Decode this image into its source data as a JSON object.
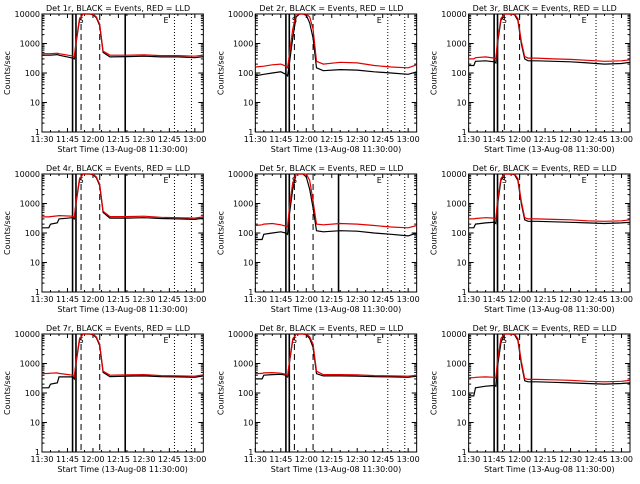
{
  "colors": {
    "events": "#000000",
    "lld": "#e00000",
    "axes": "#000000"
  },
  "common": {
    "title_suffix": "BLACK = Events, RED = LLD",
    "xlabel": "Start Time (13-Aug-08 11:30:00)",
    "ylabel": "Counts/sec",
    "x_ticks": [
      "11:30",
      "11:45",
      "12:00",
      "12:15",
      "12:30",
      "12:45",
      "13:00"
    ],
    "y_ticks": [
      "1",
      "10",
      "100",
      "1000",
      "10000"
    ],
    "markers": [
      "S",
      "E"
    ]
  },
  "chart_data": [
    {
      "type": "line",
      "title": "Det 1r",
      "xlim": [
        0,
        95
      ],
      "ylim": [
        1,
        10000
      ],
      "y_scale": "log",
      "solid_lines": [
        18,
        20,
        49
      ],
      "dashed_lines": [
        23,
        34
      ],
      "dotted_lines": [
        78,
        88
      ],
      "marker_s": 23,
      "marker_e": 73,
      "series": [
        {
          "name": "Events",
          "x": [
            0,
            4,
            5,
            9,
            10,
            18,
            19,
            20,
            22,
            24,
            26,
            28,
            30,
            32,
            34,
            36,
            40,
            50,
            60,
            70,
            80,
            90,
            95
          ],
          "y": [
            400,
            400,
            400,
            420,
            400,
            320,
            300,
            1000,
            6000,
            10000,
            10000,
            10000,
            9500,
            7500,
            4000,
            500,
            350,
            360,
            370,
            350,
            350,
            330,
            360
          ]
        },
        {
          "name": "LLD",
          "x": [
            0,
            4,
            5,
            9,
            10,
            18,
            19,
            20,
            22,
            24,
            26,
            28,
            30,
            32,
            34,
            36,
            40,
            50,
            60,
            70,
            80,
            90,
            95
          ],
          "y": [
            450,
            450,
            450,
            470,
            450,
            380,
            350,
            1100,
            6500,
            10000,
            10000,
            10000,
            10000,
            8000,
            4500,
            550,
            400,
            400,
            410,
            390,
            390,
            370,
            400
          ]
        }
      ]
    },
    {
      "type": "line",
      "title": "Det 2r",
      "xlim": [
        0,
        95
      ],
      "ylim": [
        1,
        10000
      ],
      "y_scale": "log",
      "solid_lines": [
        18,
        20
      ],
      "dashed_lines": [
        23,
        34
      ],
      "dotted_lines": [
        78,
        88
      ],
      "marker_s": 23,
      "marker_e": 73,
      "series": [
        {
          "name": "Events",
          "x": [
            0,
            5,
            10,
            15,
            18,
            19,
            20,
            22,
            24,
            26,
            28,
            30,
            32,
            34,
            36,
            40,
            50,
            60,
            70,
            80,
            90,
            95
          ],
          "y": [
            80,
            90,
            100,
            110,
            90,
            80,
            200,
            1500,
            8000,
            10000,
            10000,
            9000,
            5000,
            1500,
            150,
            120,
            130,
            125,
            110,
            100,
            90,
            110
          ]
        },
        {
          "name": "LLD",
          "x": [
            0,
            5,
            10,
            15,
            18,
            19,
            20,
            22,
            24,
            26,
            28,
            30,
            32,
            34,
            36,
            40,
            50,
            60,
            70,
            80,
            90,
            95
          ],
          "y": [
            160,
            170,
            190,
            200,
            170,
            150,
            400,
            3000,
            10000,
            10000,
            10000,
            10000,
            8000,
            3000,
            250,
            200,
            230,
            220,
            180,
            160,
            150,
            190
          ]
        }
      ]
    },
    {
      "type": "line",
      "title": "Det 3r",
      "xlim": [
        0,
        95
      ],
      "ylim": [
        1,
        10000
      ],
      "y_scale": "log",
      "solid_lines": [
        15,
        17,
        37
      ],
      "dashed_lines": [
        21,
        30
      ],
      "dotted_lines": [
        75,
        85
      ],
      "marker_s": 21,
      "marker_e": 68,
      "series": [
        {
          "name": "Events",
          "x": [
            0,
            3,
            4,
            10,
            15,
            16,
            17,
            19,
            21,
            23,
            25,
            27,
            29,
            31,
            33,
            35,
            40,
            50,
            60,
            70,
            80,
            90,
            95
          ],
          "y": [
            180,
            180,
            250,
            260,
            240,
            220,
            1000,
            6000,
            10000,
            10000,
            10000,
            9500,
            6000,
            1000,
            300,
            260,
            260,
            250,
            240,
            220,
            200,
            210,
            230
          ]
        },
        {
          "name": "LLD",
          "x": [
            0,
            3,
            4,
            10,
            15,
            16,
            17,
            19,
            21,
            23,
            25,
            27,
            29,
            31,
            33,
            35,
            40,
            50,
            60,
            70,
            80,
            90,
            95
          ],
          "y": [
            300,
            300,
            330,
            350,
            320,
            300,
            1200,
            7000,
            10000,
            10000,
            10000,
            10000,
            7000,
            1200,
            360,
            320,
            320,
            300,
            290,
            270,
            250,
            260,
            280
          ]
        }
      ]
    },
    {
      "type": "line",
      "title": "Det 4r",
      "xlim": [
        0,
        95
      ],
      "ylim": [
        1,
        10000
      ],
      "y_scale": "log",
      "solid_lines": [
        18,
        20,
        49
      ],
      "dashed_lines": [
        23,
        34
      ],
      "dotted_lines": [
        78,
        88
      ],
      "marker_s": 23,
      "marker_e": 73,
      "series": [
        {
          "name": "Events",
          "x": [
            0,
            4,
            5,
            9,
            10,
            18,
            19,
            20,
            22,
            24,
            26,
            28,
            30,
            32,
            34,
            36,
            40,
            50,
            60,
            70,
            80,
            90,
            95
          ],
          "y": [
            150,
            150,
            200,
            220,
            300,
            330,
            300,
            1000,
            6000,
            10000,
            10000,
            10000,
            9500,
            7500,
            4000,
            500,
            320,
            320,
            330,
            310,
            300,
            290,
            320
          ]
        },
        {
          "name": "LLD",
          "x": [
            0,
            4,
            5,
            9,
            10,
            18,
            19,
            20,
            22,
            24,
            26,
            28,
            30,
            32,
            34,
            36,
            40,
            50,
            60,
            70,
            80,
            90,
            95
          ],
          "y": [
            350,
            350,
            360,
            380,
            390,
            370,
            340,
            1100,
            6500,
            10000,
            10000,
            10000,
            10000,
            8000,
            4500,
            550,
            360,
            360,
            370,
            340,
            330,
            320,
            350
          ]
        }
      ]
    },
    {
      "type": "line",
      "title": "Det 5r",
      "xlim": [
        0,
        95
      ],
      "ylim": [
        1,
        10000
      ],
      "y_scale": "log",
      "solid_lines": [
        18,
        20,
        49
      ],
      "dashed_lines": [
        23,
        34
      ],
      "dotted_lines": [
        78,
        88
      ],
      "marker_s": 23,
      "marker_e": 73,
      "series": [
        {
          "name": "Events",
          "x": [
            0,
            4,
            5,
            10,
            15,
            18,
            19,
            20,
            22,
            24,
            26,
            28,
            30,
            32,
            34,
            36,
            40,
            50,
            60,
            70,
            80,
            90,
            95
          ],
          "y": [
            60,
            60,
            90,
            100,
            110,
            100,
            90,
            400,
            3000,
            10000,
            10000,
            10000,
            8000,
            3000,
            700,
            120,
            110,
            120,
            115,
            100,
            90,
            80,
            100
          ]
        },
        {
          "name": "LLD",
          "x": [
            0,
            4,
            5,
            10,
            15,
            18,
            19,
            20,
            22,
            24,
            26,
            28,
            30,
            32,
            34,
            36,
            40,
            50,
            60,
            70,
            80,
            90,
            95
          ],
          "y": [
            180,
            190,
            200,
            210,
            190,
            170,
            160,
            700,
            5000,
            10000,
            10000,
            10000,
            10000,
            6000,
            1200,
            200,
            190,
            210,
            200,
            180,
            160,
            150,
            180
          ]
        }
      ]
    },
    {
      "type": "line",
      "title": "Det 6r",
      "xlim": [
        0,
        95
      ],
      "ylim": [
        1,
        10000
      ],
      "y_scale": "log",
      "solid_lines": [
        15,
        17,
        37
      ],
      "dashed_lines": [
        21,
        30
      ],
      "dotted_lines": [
        75,
        85
      ],
      "marker_s": 21,
      "marker_e": 68,
      "series": [
        {
          "name": "Events",
          "x": [
            0,
            3,
            4,
            10,
            15,
            16,
            17,
            19,
            21,
            23,
            25,
            27,
            29,
            31,
            33,
            35,
            40,
            50,
            60,
            70,
            80,
            90,
            95
          ],
          "y": [
            150,
            150,
            200,
            220,
            230,
            210,
            900,
            6000,
            10000,
            10000,
            10000,
            9500,
            6000,
            1000,
            280,
            250,
            250,
            240,
            230,
            220,
            210,
            220,
            230
          ]
        },
        {
          "name": "LLD",
          "x": [
            0,
            3,
            4,
            10,
            15,
            16,
            17,
            19,
            21,
            23,
            25,
            27,
            29,
            31,
            33,
            35,
            40,
            50,
            60,
            70,
            80,
            90,
            95
          ],
          "y": [
            300,
            300,
            310,
            330,
            320,
            300,
            1200,
            7000,
            10000,
            10000,
            10000,
            10000,
            7000,
            1200,
            330,
            300,
            300,
            290,
            280,
            260,
            250,
            260,
            280
          ]
        }
      ]
    },
    {
      "type": "line",
      "title": "Det 7r",
      "xlim": [
        0,
        95
      ],
      "ylim": [
        1,
        10000
      ],
      "y_scale": "log",
      "solid_lines": [
        18,
        20,
        49
      ],
      "dashed_lines": [
        23,
        34
      ],
      "dotted_lines": [
        78,
        88
      ],
      "marker_s": 23,
      "marker_e": 73,
      "series": [
        {
          "name": "Events",
          "x": [
            0,
            4,
            5,
            9,
            10,
            18,
            19,
            20,
            22,
            24,
            26,
            28,
            30,
            32,
            34,
            36,
            40,
            50,
            60,
            70,
            80,
            90,
            95
          ],
          "y": [
            150,
            150,
            200,
            220,
            350,
            350,
            300,
            1000,
            6000,
            10000,
            10000,
            10000,
            9500,
            7500,
            4000,
            500,
            360,
            370,
            380,
            360,
            350,
            340,
            380
          ]
        },
        {
          "name": "LLD",
          "x": [
            0,
            4,
            5,
            9,
            10,
            18,
            19,
            20,
            22,
            24,
            26,
            28,
            30,
            32,
            34,
            36,
            40,
            50,
            60,
            70,
            80,
            90,
            95
          ],
          "y": [
            450,
            460,
            470,
            480,
            460,
            400,
            360,
            1100,
            6500,
            10000,
            10000,
            10000,
            10000,
            8000,
            4500,
            550,
            400,
            410,
            420,
            390,
            380,
            370,
            410
          ]
        }
      ]
    },
    {
      "type": "line",
      "title": "Det 8r",
      "xlim": [
        0,
        95
      ],
      "ylim": [
        1,
        10000
      ],
      "y_scale": "log",
      "solid_lines": [
        18,
        20
      ],
      "dashed_lines": [
        23,
        34
      ],
      "dotted_lines": [
        78,
        88
      ],
      "marker_s": 23,
      "marker_e": 73,
      "series": [
        {
          "name": "Events",
          "x": [
            0,
            4,
            5,
            10,
            15,
            18,
            19,
            20,
            22,
            24,
            26,
            28,
            30,
            32,
            34,
            36,
            40,
            50,
            60,
            70,
            80,
            90,
            95
          ],
          "y": [
            300,
            300,
            400,
            420,
            430,
            400,
            350,
            1000,
            6000,
            10000,
            10000,
            10000,
            9500,
            7000,
            3500,
            450,
            380,
            380,
            370,
            360,
            350,
            340,
            370
          ]
        },
        {
          "name": "LLD",
          "x": [
            0,
            4,
            5,
            10,
            15,
            18,
            19,
            20,
            22,
            24,
            26,
            28,
            30,
            32,
            34,
            36,
            40,
            50,
            60,
            70,
            80,
            90,
            95
          ],
          "y": [
            450,
            460,
            480,
            490,
            470,
            430,
            380,
            1100,
            6500,
            10000,
            10000,
            10000,
            10000,
            8000,
            4500,
            550,
            420,
            420,
            410,
            390,
            380,
            370,
            400
          ]
        }
      ]
    },
    {
      "type": "line",
      "title": "Det 9r",
      "xlim": [
        0,
        95
      ],
      "ylim": [
        1,
        10000
      ],
      "y_scale": "log",
      "solid_lines": [
        15,
        17,
        37
      ],
      "dashed_lines": [
        21,
        30
      ],
      "dotted_lines": [
        75,
        85
      ],
      "marker_s": 21,
      "marker_e": 68,
      "series": [
        {
          "name": "Events",
          "x": [
            0,
            3,
            4,
            10,
            15,
            16,
            17,
            19,
            21,
            23,
            25,
            27,
            29,
            31,
            33,
            35,
            40,
            50,
            60,
            70,
            80,
            90,
            95
          ],
          "y": [
            80,
            80,
            150,
            170,
            180,
            170,
            800,
            5000,
            10000,
            10000,
            10000,
            9500,
            6000,
            1000,
            260,
            240,
            240,
            230,
            220,
            210,
            200,
            210,
            220
          ]
        },
        {
          "name": "LLD",
          "x": [
            0,
            3,
            4,
            10,
            15,
            16,
            17,
            19,
            21,
            23,
            25,
            27,
            29,
            31,
            33,
            35,
            40,
            50,
            60,
            70,
            80,
            90,
            95
          ],
          "y": [
            330,
            330,
            340,
            350,
            340,
            320,
            1200,
            7000,
            10000,
            10000,
            10000,
            10000,
            7000,
            1200,
            310,
            290,
            290,
            280,
            270,
            250,
            240,
            250,
            270
          ]
        }
      ]
    }
  ]
}
